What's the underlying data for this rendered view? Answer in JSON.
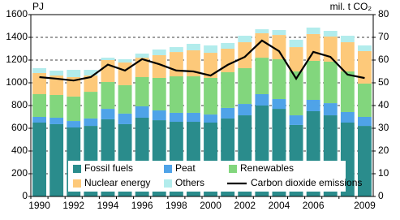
{
  "chart_data": {
    "type": "bar",
    "stacked": true,
    "y_label": "PJ",
    "y2_label": "mil. t CO₂",
    "categories": [
      "1990",
      null,
      "1992",
      null,
      "1994",
      null,
      "1996",
      null,
      "1998",
      null,
      "2000",
      null,
      "2002",
      null,
      "2004",
      null,
      "2006",
      null,
      null,
      "2009"
    ],
    "ylim": [
      0,
      1600
    ],
    "yticks": [
      0,
      200,
      400,
      600,
      800,
      1000,
      1200,
      1400,
      1600
    ],
    "y2lim": [
      0,
      80
    ],
    "y2ticks": [
      0,
      10,
      20,
      30,
      40,
      50,
      60,
      70,
      80
    ],
    "grid": true,
    "legend": "bottom",
    "series": [
      {
        "name": "Fossil fuels",
        "color": "#2a8c8c",
        "values": [
          650,
          636,
          607,
          621,
          679,
          636,
          693,
          671,
          657,
          657,
          650,
          686,
          714,
          800,
          771,
          629,
          750,
          714,
          650,
          621
        ]
      },
      {
        "name": "Peat",
        "color": "#4fa3e8",
        "values": [
          50,
          57,
          57,
          65,
          92,
          93,
          100,
          86,
          79,
          79,
          71,
          93,
          100,
          100,
          86,
          85,
          100,
          107,
          93,
          79
        ]
      },
      {
        "name": "Renewables",
        "color": "#82d67d",
        "values": [
          200,
          200,
          215,
          235,
          236,
          250,
          257,
          286,
          321,
          321,
          322,
          314,
          315,
          321,
          350,
          386,
          343,
          365,
          357,
          293
        ]
      },
      {
        "name": "Nuclear energy",
        "color": "#fdc97a",
        "values": [
          186,
          171,
          171,
          143,
          193,
          200,
          171,
          200,
          214,
          229,
          221,
          207,
          228,
          215,
          214,
          214,
          236,
          221,
          257,
          286
        ]
      },
      {
        "name": "Others",
        "color": "#b2ecec",
        "values": [
          43,
          43,
          64,
          50,
          21,
          28,
          36,
          50,
          43,
          57,
          65,
          50,
          57,
          35,
          43,
          65,
          57,
          50,
          57,
          50
        ]
      },
      {
        "name": "Carbon dioxide emissions",
        "color": "#000000",
        "type": "line",
        "axis": "y2",
        "values": [
          52.5,
          51.8,
          51,
          52.5,
          58,
          55.4,
          60.4,
          58.2,
          55.4,
          55,
          53.2,
          57.9,
          61.4,
          68.6,
          63.9,
          51.8,
          63.6,
          61.4,
          53.6,
          52.1
        ]
      }
    ]
  }
}
